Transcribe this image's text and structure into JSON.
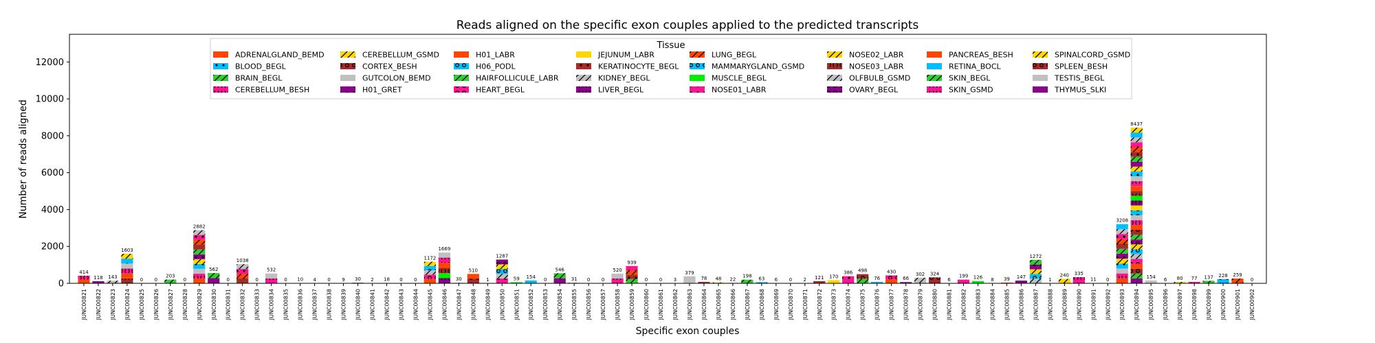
{
  "chart_data": {
    "type": "bar",
    "stacked": true,
    "title": "Reads aligned on the specific exon couples applied to the predicted transcripts",
    "xlabel": "Specific exon couples",
    "ylabel": "Number of reads aligned",
    "ylim": [
      0,
      13500
    ],
    "yticks": [
      0,
      2000,
      4000,
      6000,
      8000,
      10000,
      12000
    ],
    "grid": false,
    "legend": {
      "title": "Tissue",
      "placement": "top-center",
      "entries": [
        {
          "name": "ADRENALGLAND_BEMD",
          "color": "#ff4500",
          "hatch": ""
        },
        {
          "name": "BLOOD_BEGL",
          "color": "#00bfff",
          "hatch": "dot"
        },
        {
          "name": "BRAIN_BEGL",
          "color": "#32cd32",
          "hatch": "slash"
        },
        {
          "name": "CEREBELLUM_BESH",
          "color": "#ff1493",
          "hatch": "paren"
        },
        {
          "name": "CEREBELLUM_GSMD",
          "color": "#ffd700",
          "hatch": "slash"
        },
        {
          "name": "CORTEX_BESH",
          "color": "#a52a2a",
          "hatch": "ring"
        },
        {
          "name": "GUTCOLON_BEMD",
          "color": "#c0c0c0",
          "hatch": ""
        },
        {
          "name": "H01_GRET",
          "color": "#8b008b",
          "hatch": "dot"
        },
        {
          "name": "H01_LABR",
          "color": "#ff4500",
          "hatch": ""
        },
        {
          "name": "H06_PODL",
          "color": "#00bfff",
          "hatch": "ring"
        },
        {
          "name": "HAIRFOLLICULE_LABR",
          "color": "#32cd32",
          "hatch": "slash"
        },
        {
          "name": "HEART_BEGL",
          "color": "#ff1493",
          "hatch": "ring"
        },
        {
          "name": "JEJUNUM_LABR",
          "color": "#ffd700",
          "hatch": ""
        },
        {
          "name": "KERATINOCYTE_BEGL",
          "color": "#a52a2a",
          "hatch": "dot"
        },
        {
          "name": "KIDNEY_BEGL",
          "color": "#c0c0c0",
          "hatch": "slash"
        },
        {
          "name": "LIVER_BEGL",
          "color": "#8b008b",
          "hatch": "paren"
        },
        {
          "name": "LUNG_BEGL",
          "color": "#ff4500",
          "hatch": "slash"
        },
        {
          "name": "MAMMARYGLAND_GSMD",
          "color": "#00bfff",
          "hatch": "ring"
        },
        {
          "name": "MUSCLE_BEGL",
          "color": "#00ee00",
          "hatch": ""
        },
        {
          "name": "NOSE01_LABR",
          "color": "#ff1493",
          "hatch": "dot"
        },
        {
          "name": "NOSE02_LABR",
          "color": "#ffd700",
          "hatch": "slash"
        },
        {
          "name": "NOSE03_LABR",
          "color": "#a52a2a",
          "hatch": "paren"
        },
        {
          "name": "OLFBULB_GSMD",
          "color": "#c0c0c0",
          "hatch": "slash"
        },
        {
          "name": "OVARY_BEGL",
          "color": "#8b008b",
          "hatch": "ring"
        },
        {
          "name": "PANCREAS_BESH",
          "color": "#ff4500",
          "hatch": ""
        },
        {
          "name": "RETINA_BOCL",
          "color": "#00bfff",
          "hatch": ""
        },
        {
          "name": "SKIN_BEGL",
          "color": "#32cd32",
          "hatch": "slash"
        },
        {
          "name": "SKIN_GSMD",
          "color": "#ff1493",
          "hatch": "paren"
        },
        {
          "name": "SPINALCORD_GSMD",
          "color": "#ffd700",
          "hatch": "slash"
        },
        {
          "name": "SPLEEN_BESH",
          "color": "#a52a2a",
          "hatch": "ring"
        },
        {
          "name": "TESTIS_BEGL",
          "color": "#c0c0c0",
          "hatch": ""
        },
        {
          "name": "THYMUS_SLKI",
          "color": "#8b008b",
          "hatch": ""
        }
      ]
    },
    "categories": [
      "JUNC00821",
      "JUNC00822",
      "JUNC00823",
      "JUNC00824",
      "JUNC00825",
      "JUNC00826",
      "JUNC00827",
      "JUNC00828",
      "JUNC00829",
      "JUNC00830",
      "JUNC00831",
      "JUNC00832",
      "JUNC00833",
      "JUNC00834",
      "JUNC00835",
      "JUNC00836",
      "JUNC00837",
      "JUNC00838",
      "JUNC00839",
      "JUNC00840",
      "JUNC00841",
      "JUNC00842",
      "JUNC00843",
      "JUNC00844",
      "JUNC00845",
      "JUNC00846",
      "JUNC00847",
      "JUNC00848",
      "JUNC00849",
      "JUNC00850",
      "JUNC00851",
      "JUNC00852",
      "JUNC00853",
      "JUNC00854",
      "JUNC00855",
      "JUNC00856",
      "JUNC00857",
      "JUNC00858",
      "JUNC00859",
      "JUNC00860",
      "JUNC00861",
      "JUNC00862",
      "JUNC00863",
      "JUNC00864",
      "JUNC00865",
      "JUNC00866",
      "JUNC00867",
      "JUNC00868",
      "JUNC00869",
      "JUNC00870",
      "JUNC00871",
      "JUNC00872",
      "JUNC00873",
      "JUNC00874",
      "JUNC00875",
      "JUNC00876",
      "JUNC00877",
      "JUNC00878",
      "JUNC00879",
      "JUNC00880",
      "JUNC00881",
      "JUNC00882",
      "JUNC00883",
      "JUNC00884",
      "JUNC00885",
      "JUNC00886",
      "JUNC00887",
      "JUNC00888",
      "JUNC00889",
      "JUNC00890",
      "JUNC00891",
      "JUNC00892",
      "JUNC00893",
      "JUNC00894",
      "JUNC00895",
      "JUNC00896",
      "JUNC00897",
      "JUNC00898",
      "JUNC00899",
      "JUNC00900",
      "JUNC00901",
      "JUNC00902"
    ],
    "totals": [
      414,
      118,
      143,
      1603,
      0,
      0,
      203,
      0,
      2882,
      562,
      0,
      1038,
      0,
      532,
      0,
      10,
      4,
      0,
      9,
      30,
      2,
      18,
      0,
      0,
      1172,
      1669,
      30,
      510,
      1,
      1287,
      59,
      154,
      0,
      546,
      31,
      0,
      0,
      520,
      939,
      0,
      0,
      3,
      379,
      78,
      48,
      22,
      198,
      63,
      6,
      0,
      2,
      121,
      170,
      386,
      498,
      76,
      430,
      66,
      302,
      324,
      6,
      199,
      126,
      8,
      39,
      147,
      1272,
      1,
      240,
      335,
      11,
      0,
      3208,
      8437,
      154,
      6,
      80,
      77,
      137,
      228,
      259,
      0
    ],
    "total_labels": [
      "414",
      "118",
      "143",
      "1603",
      "0",
      "0",
      "203",
      "0",
      "2882",
      "562",
      "0",
      "1038",
      "0",
      "532",
      "0",
      "10",
      "4",
      "0",
      "9",
      "30",
      "2",
      "18",
      "0",
      "0",
      "1172",
      "1669",
      "30",
      "510",
      "1",
      "1287",
      "59",
      "154",
      "0",
      "546",
      "31",
      "0",
      "0",
      "520",
      "939",
      "0",
      "0",
      "3",
      "379",
      "78",
      "48",
      "22",
      "198",
      "63",
      "6",
      "0",
      "2",
      "121",
      "170",
      "386",
      "498",
      "76",
      "430",
      "66",
      "302",
      "324",
      "6",
      "199",
      "126",
      "8",
      "39",
      "147",
      "1272",
      "1",
      "240",
      "335",
      "11",
      "0",
      "3208",
      "8437",
      "154",
      "6",
      "80",
      "77",
      "137",
      "228",
      "259",
      "0"
    ]
  }
}
